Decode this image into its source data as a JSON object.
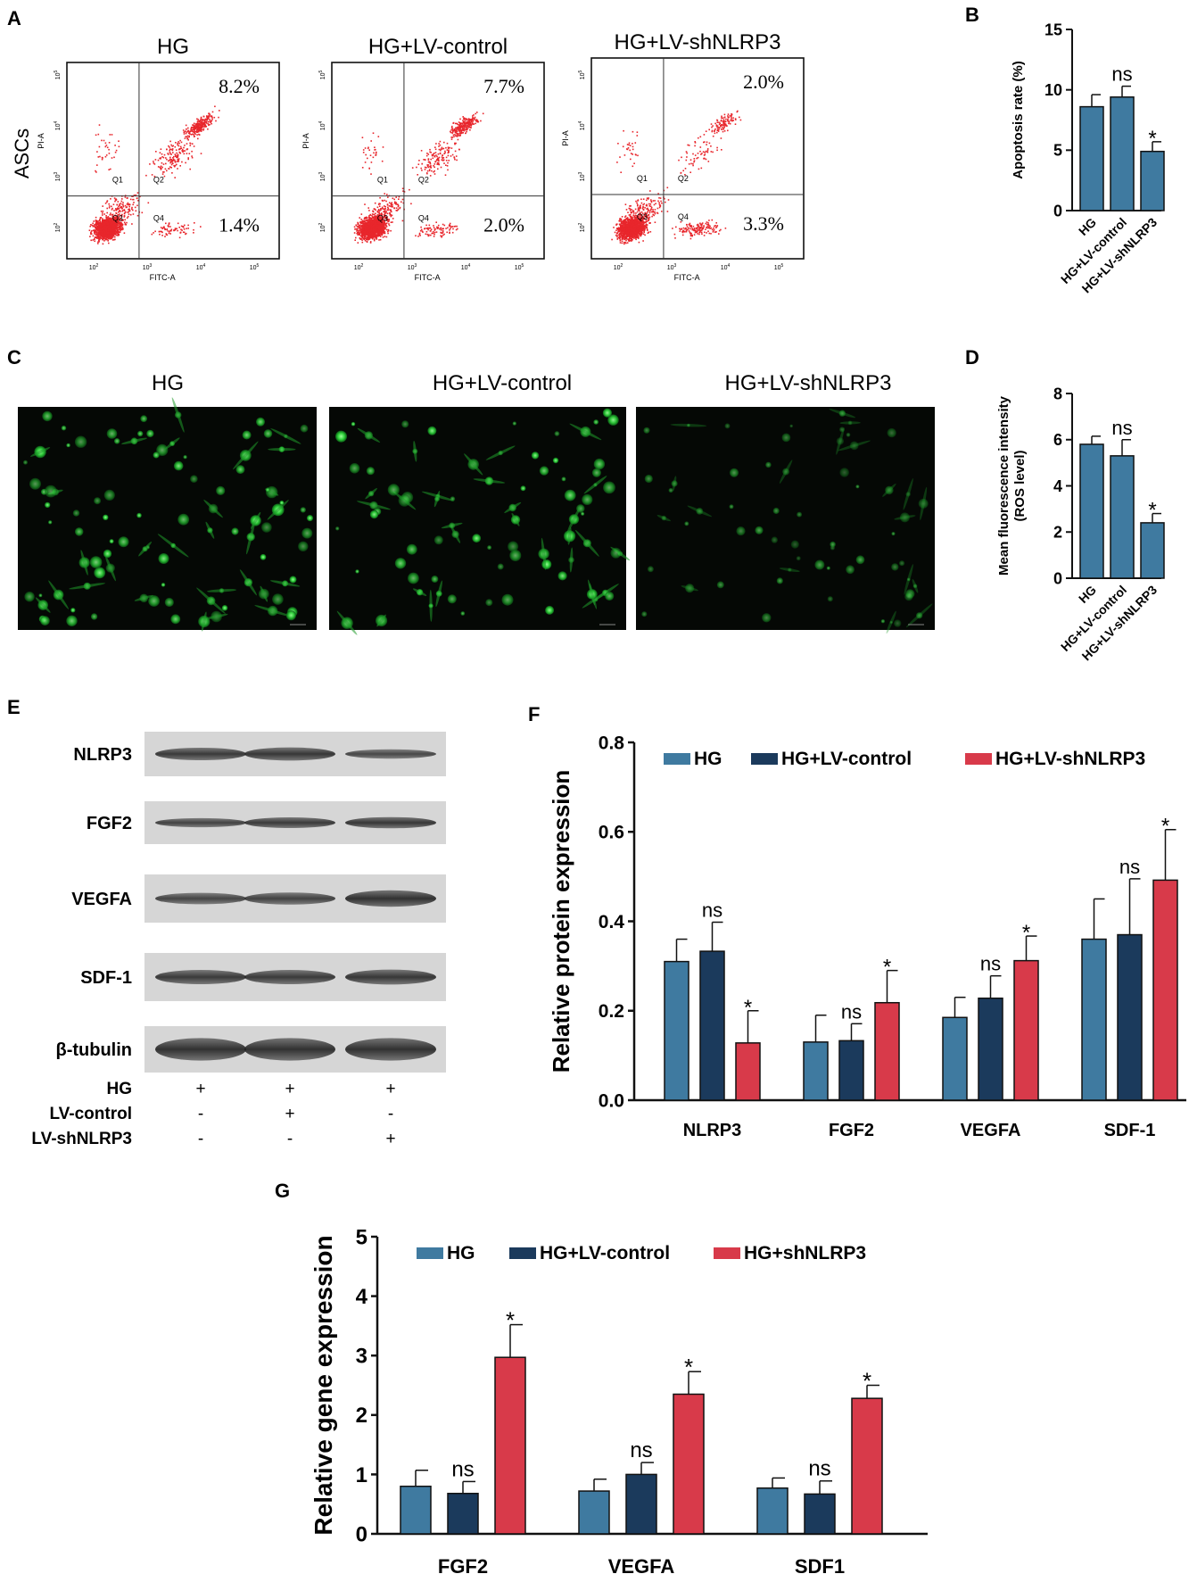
{
  "colors": {
    "hg": "#3f7aa0",
    "ctrl": "#1b3a5c",
    "sh": "#d83a4a",
    "dot": "#e8262c",
    "gfp": "#2fd33b"
  },
  "panel_a": {
    "letter": "A",
    "row_label": "ASCs",
    "plots": [
      {
        "title": "HG",
        "q2": "8.2%",
        "q4": "1.4%"
      },
      {
        "title": "HG+LV-control",
        "q2": "7.7%",
        "q4": "2.0%"
      },
      {
        "title": "HG+LV-shNLRP3",
        "q2": "2.0%",
        "q4": "3.3%"
      }
    ],
    "quadrants": [
      "Q1",
      "Q2",
      "Q3",
      "Q4"
    ],
    "xlabel": "FITC-A",
    "ylabel": "PI-A",
    "ticks": [
      "10",
      "10",
      "10",
      "10"
    ],
    "tick_exps": [
      "2",
      "3",
      "4",
      "5"
    ]
  },
  "panel_c": {
    "letter": "C",
    "titles": [
      "HG",
      "HG+LV-control",
      "HG+LV-shNLRP3"
    ]
  },
  "panel_e": {
    "letter": "E",
    "bands": [
      "NLRP3",
      "FGF2",
      "VEGFA",
      "SDF-1",
      "β-tubulin"
    ],
    "conditions": [
      {
        "name": "HG",
        "signs": [
          "+",
          "+",
          "+"
        ]
      },
      {
        "name": "LV-control",
        "signs": [
          "-",
          "+",
          "-"
        ]
      },
      {
        "name": "LV-shNLRP3",
        "signs": [
          "-",
          "-",
          "+"
        ]
      }
    ]
  },
  "chart_data": [
    {
      "panel": "B",
      "type": "bar",
      "categories": [
        "HG",
        "HG+LV-control",
        "HG+LV-shNLRP3"
      ],
      "values": [
        8.6,
        9.4,
        4.9
      ],
      "errors": [
        1.0,
        0.9,
        0.8
      ],
      "annotations": [
        "",
        "ns",
        "*"
      ],
      "ylabel": "Apoptosis rate (%)",
      "ylim": [
        0,
        15
      ],
      "yticks": [
        0,
        5,
        10,
        15
      ]
    },
    {
      "panel": "D",
      "type": "bar",
      "categories": [
        "HG",
        "HG+LV-control",
        "HG+LV-shNLRP3"
      ],
      "values": [
        5.8,
        5.3,
        2.4
      ],
      "errors": [
        0.35,
        0.7,
        0.4
      ],
      "annotations": [
        "",
        "ns",
        "*"
      ],
      "ylabel": "Mean fluorescence intensity",
      "ylabel2": "(ROS level)",
      "ylim": [
        0,
        8
      ],
      "yticks": [
        0,
        2,
        4,
        6,
        8
      ]
    },
    {
      "panel": "F",
      "type": "bar",
      "categories": [
        "NLRP3",
        "FGF2",
        "VEGFA",
        "SDF-1"
      ],
      "series": [
        {
          "name": "HG",
          "values": [
            0.31,
            0.13,
            0.185,
            0.36
          ],
          "errors": [
            0.05,
            0.06,
            0.045,
            0.09
          ],
          "annotations": [
            "",
            "",
            "",
            ""
          ]
        },
        {
          "name": "HG+LV-control",
          "values": [
            0.333,
            0.133,
            0.228,
            0.37
          ],
          "errors": [
            0.065,
            0.038,
            0.05,
            0.125
          ],
          "annotations": [
            "ns",
            "ns",
            "ns",
            "ns"
          ]
        },
        {
          "name": "HG+LV-shNLRP3",
          "values": [
            0.128,
            0.218,
            0.312,
            0.492
          ],
          "errors": [
            0.072,
            0.072,
            0.055,
            0.113
          ],
          "annotations": [
            "*",
            "*",
            "*",
            "*"
          ]
        }
      ],
      "ylabel": "Relative protein expression",
      "ylim": [
        0,
        0.8
      ],
      "yticks": [
        "0.0",
        "0.2",
        "0.4",
        "0.6",
        "0.8"
      ]
    },
    {
      "panel": "G",
      "type": "bar",
      "categories": [
        "FGF2",
        "VEGFA",
        "SDF1"
      ],
      "series": [
        {
          "name": "HG",
          "values": [
            0.8,
            0.72,
            0.77
          ],
          "errors": [
            0.27,
            0.2,
            0.17
          ],
          "annotations": [
            "",
            "",
            ""
          ]
        },
        {
          "name": "HG+LV-control",
          "values": [
            0.68,
            1.0,
            0.67
          ],
          "errors": [
            0.2,
            0.2,
            0.22
          ],
          "annotations": [
            "ns",
            "ns",
            "ns"
          ]
        },
        {
          "name": "HG+shNLRP3",
          "values": [
            2.97,
            2.35,
            2.28
          ],
          "errors": [
            0.55,
            0.38,
            0.22
          ],
          "annotations": [
            "*",
            "*",
            "*"
          ]
        }
      ],
      "ylabel": "Relative gene  expression",
      "ylim": [
        0,
        5
      ],
      "yticks": [
        0,
        1,
        2,
        3,
        4,
        5
      ]
    }
  ]
}
